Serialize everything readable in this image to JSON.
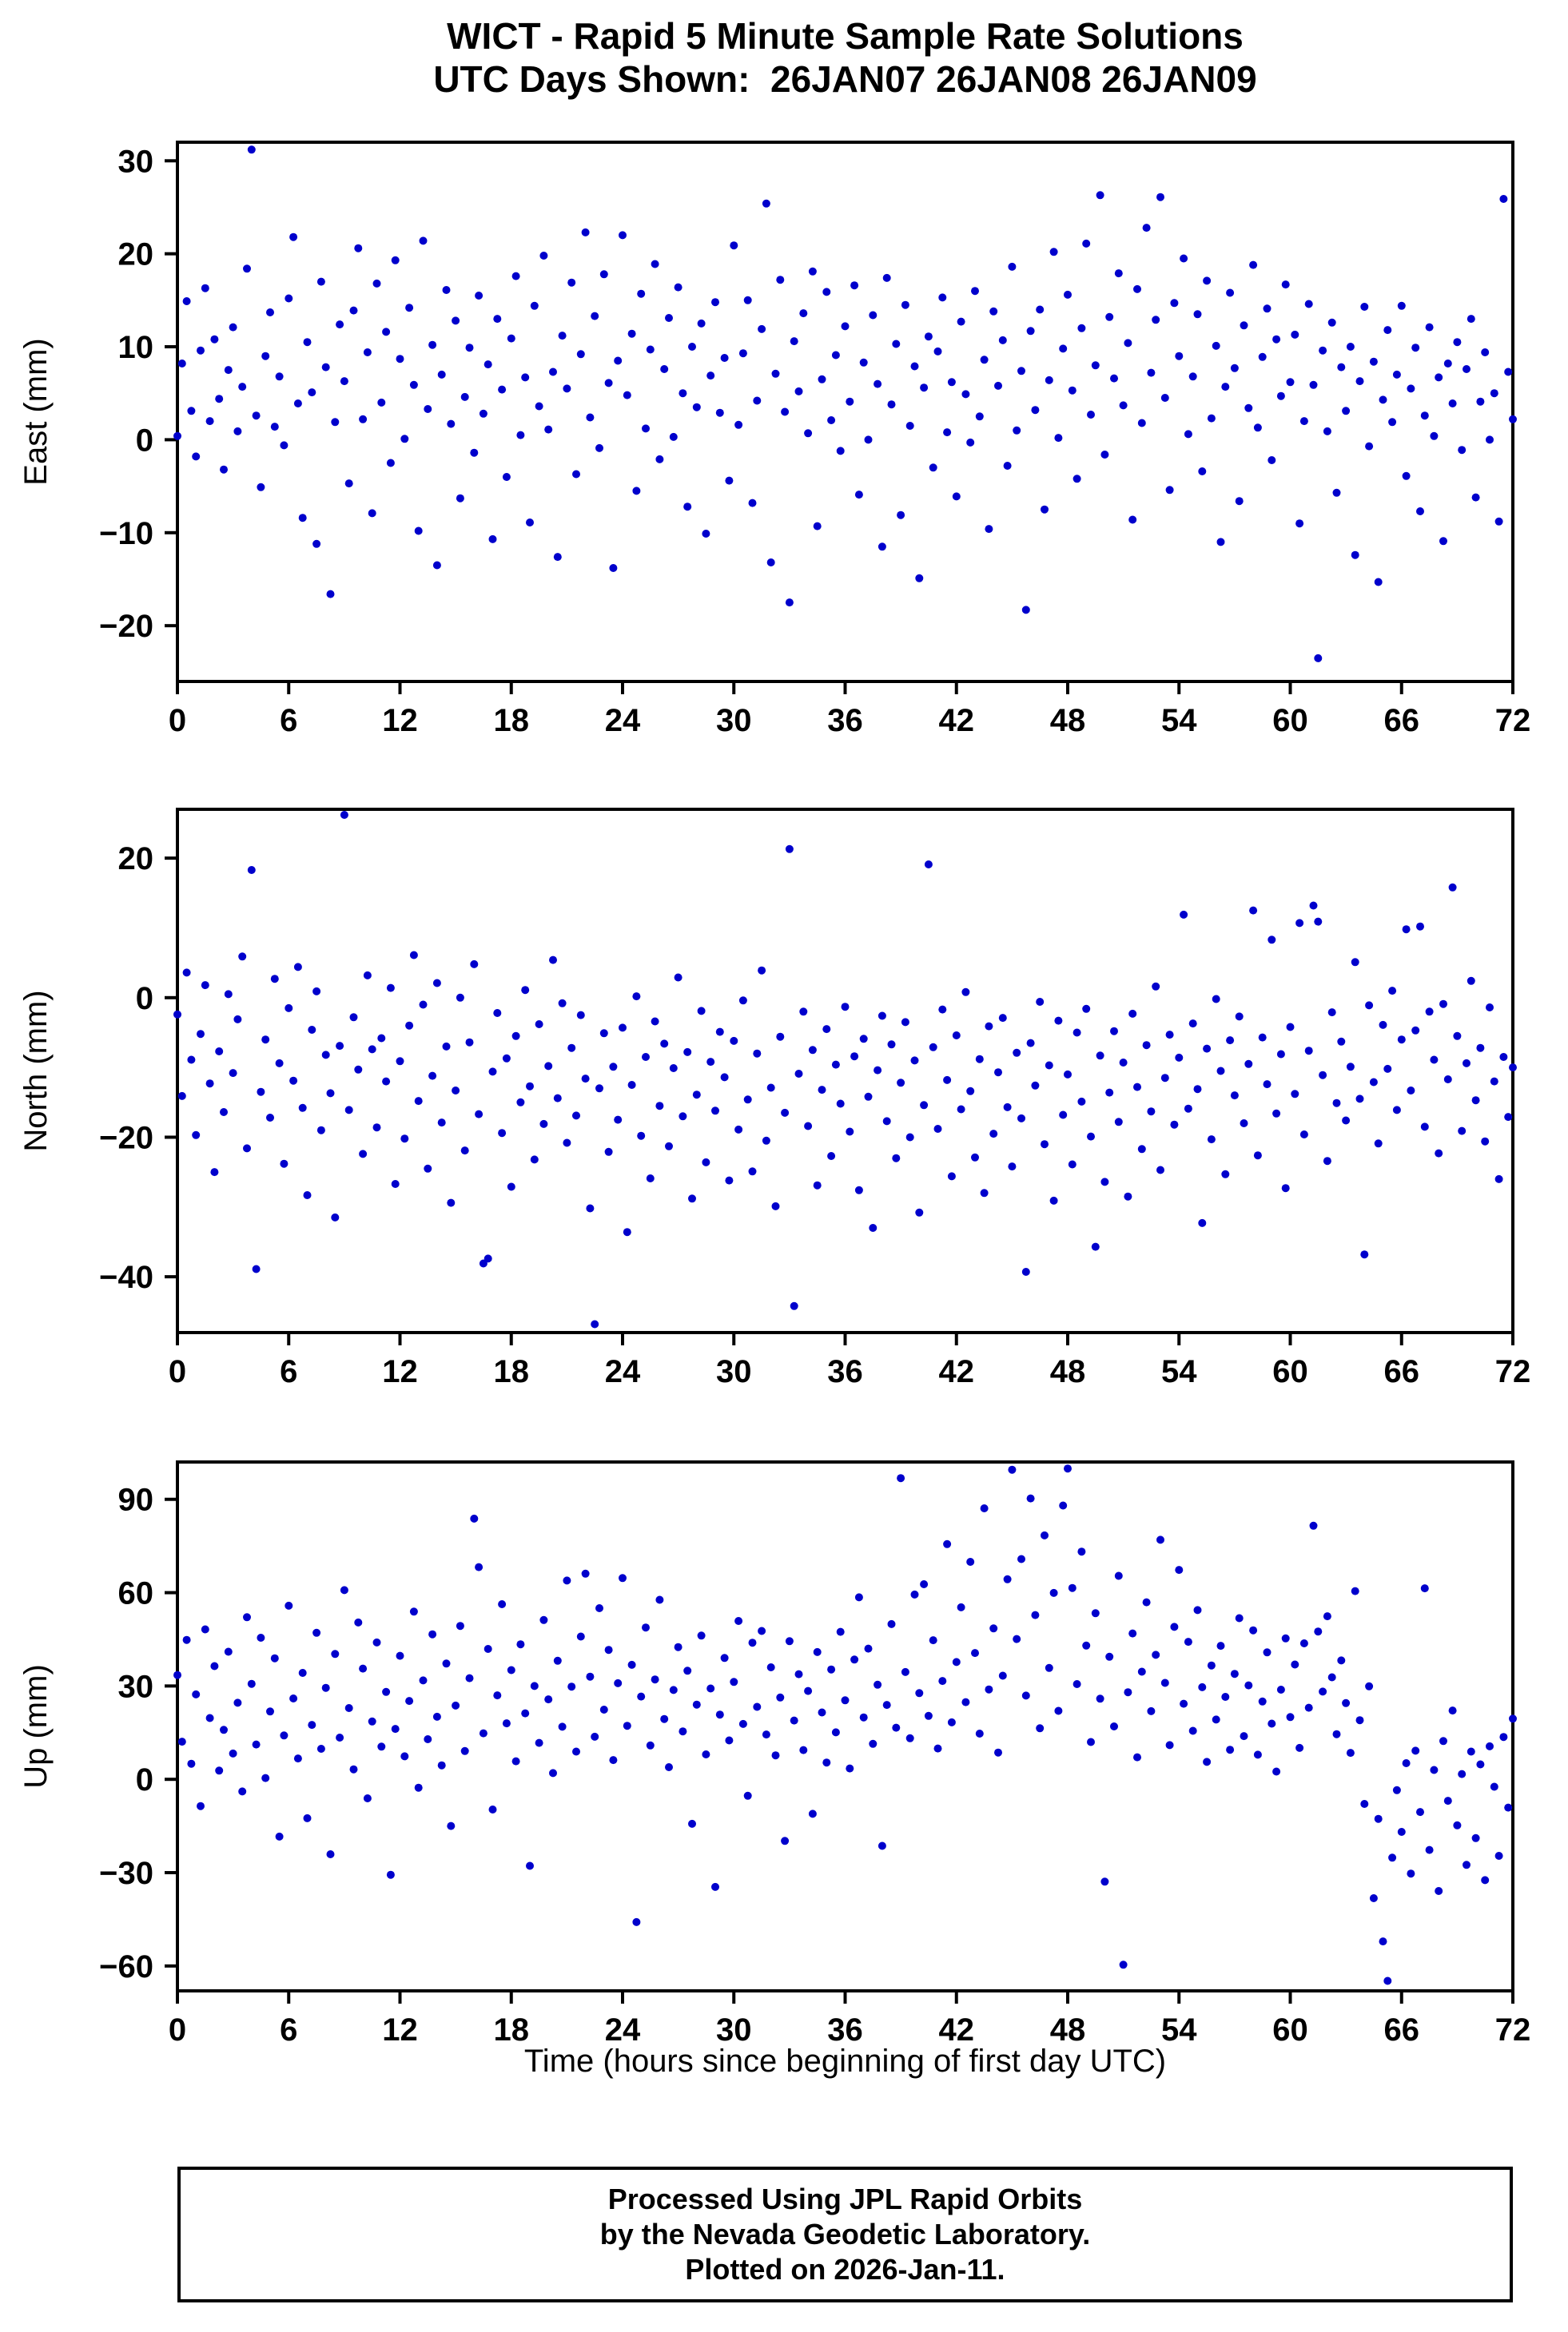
{
  "title": {
    "line1": "WICT - Rapid 5 Minute Sample Rate Solutions",
    "line2": "UTC Days Shown:  26JAN07 26JAN08 26JAN09"
  },
  "footer": {
    "line1": "Processed Using JPL Rapid Orbits",
    "line2": "by the Nevada Geodetic Laboratory.",
    "line3": "Plotted on 2026-Jan-11."
  },
  "chart_data": {
    "type": "scatter",
    "marker_color": "#0000cc",
    "frame_color": "#000000",
    "xlabel": "Time (hours since beginning of first day UTC)",
    "x_range": [
      0,
      72
    ],
    "x_ticks": [
      0,
      6,
      12,
      18,
      24,
      30,
      36,
      42,
      48,
      54,
      60,
      66,
      72
    ],
    "x_step_hours": 0.25,
    "panels": [
      {
        "name": "east",
        "ylabel": "East (mm)",
        "ylim": [
          -26,
          32
        ],
        "yticks": [
          -20,
          -10,
          0,
          10,
          20,
          30
        ],
        "y": [
          0.4,
          8.2,
          14.9,
          3.1,
          -1.8,
          9.6,
          16.3,
          2.0,
          10.8,
          4.4,
          -3.2,
          7.5,
          12.1,
          0.9,
          5.7,
          18.4,
          31.2,
          2.6,
          -5.1,
          9.0,
          13.7,
          1.4,
          6.8,
          -0.6,
          15.2,
          21.8,
          3.9,
          -8.4,
          10.5,
          5.1,
          -11.2,
          17.0,
          7.8,
          -16.6,
          1.9,
          12.4,
          6.3,
          -4.7,
          13.9,
          20.6,
          2.2,
          9.4,
          -7.9,
          16.8,
          4.0,
          11.6,
          -2.5,
          19.3,
          8.7,
          0.1,
          14.2,
          5.9,
          -9.8,
          21.4,
          3.3,
          10.2,
          -13.5,
          7.0,
          16.1,
          1.7,
          12.8,
          -6.3,
          4.6,
          9.9,
          -1.4,
          15.5,
          2.8,
          8.1,
          -10.7,
          13.0,
          5.4,
          -4.0,
          10.9,
          17.6,
          0.5,
          6.7,
          -8.9,
          14.4,
          3.6,
          19.8,
          1.1,
          7.3,
          -12.6,
          11.2,
          5.5,
          16.9,
          -3.7,
          9.2,
          22.3,
          2.4,
          13.3,
          -0.9,
          17.8,
          6.1,
          -13.8,
          8.5,
          22.0,
          4.8,
          11.4,
          -5.5,
          15.7,
          1.2,
          9.7,
          18.9,
          -2.1,
          7.6,
          13.1,
          0.3,
          16.4,
          5.0,
          -7.2,
          10.0,
          3.5,
          12.5,
          -10.1,
          6.9,
          14.8,
          2.9,
          8.8,
          -4.4,
          20.9,
          1.6,
          9.3,
          15.0,
          -6.8,
          4.2,
          11.9,
          25.4,
          -13.2,
          7.1,
          17.2,
          3.0,
          -17.5,
          10.6,
          5.2,
          13.6,
          0.7,
          18.1,
          -9.3,
          6.5,
          15.9,
          2.1,
          9.1,
          -1.2,
          12.2,
          4.1,
          16.6,
          -5.9,
          8.3,
          0.0,
          13.4,
          6.0,
          -11.5,
          17.4,
          3.8,
          10.3,
          -8.1,
          14.5,
          1.5,
          7.9,
          -14.9,
          5.6,
          11.1,
          -3.0,
          9.5,
          15.3,
          0.8,
          6.2,
          -6.1,
          12.7,
          4.9,
          -0.3,
          16.0,
          2.5,
          8.6,
          -9.6,
          13.8,
          5.8,
          10.7,
          -2.8,
          18.6,
          1.0,
          7.4,
          -18.3,
          11.7,
          3.2,
          14.0,
          -7.5,
          6.4,
          20.2,
          0.2,
          9.8,
          15.6,
          5.3,
          -4.2,
          12.0,
          21.1,
          2.7,
          8.0,
          26.3,
          -1.6,
          13.2,
          6.6,
          17.9,
          3.7,
          10.4,
          -8.6,
          16.2,
          1.8,
          22.8,
          7.2,
          12.9,
          26.1,
          4.5,
          -5.4,
          14.7,
          9.0,
          19.5,
          0.6,
          6.8,
          13.5,
          -3.4,
          17.1,
          2.3,
          10.1,
          -11.0,
          5.7,
          15.8,
          7.7,
          -6.6,
          12.3,
          3.4,
          18.8,
          1.3,
          8.9,
          14.1,
          -2.2,
          10.8,
          4.7,
          16.7,
          6.2,
          11.3,
          -9.0,
          2.0,
          14.6,
          5.9,
          -23.5,
          9.6,
          0.9,
          12.6,
          -5.7,
          7.8,
          3.1,
          10.0,
          -12.4,
          6.3,
          14.3,
          -0.7,
          8.4,
          -15.3,
          4.3,
          11.8,
          1.9,
          7.0,
          14.4,
          -3.9,
          5.5,
          9.9,
          -7.7,
          2.6,
          12.1,
          0.4,
          6.7,
          -10.9,
          8.2,
          3.9,
          10.5,
          -1.1,
          7.6,
          13.0,
          -6.2,
          4.1,
          9.4,
          0.0,
          5.0,
          -8.8,
          25.9,
          7.3,
          2.2
        ]
      },
      {
        "name": "north",
        "ylabel": "North (mm)",
        "ylim": [
          -48,
          27
        ],
        "yticks": [
          -40,
          -20,
          0,
          20
        ],
        "y": [
          -2.4,
          -14.1,
          3.6,
          -8.9,
          -19.7,
          -5.2,
          1.8,
          -12.3,
          -25.0,
          -7.7,
          -16.4,
          0.5,
          -10.8,
          -3.1,
          5.9,
          -21.6,
          18.3,
          -38.9,
          -13.5,
          -6.0,
          -17.2,
          2.7,
          -9.4,
          -23.8,
          -1.5,
          -11.9,
          4.4,
          -15.8,
          -28.3,
          -4.6,
          0.9,
          -19.0,
          -8.2,
          -13.7,
          -31.5,
          -6.9,
          26.2,
          -16.1,
          -2.8,
          -10.3,
          -22.4,
          3.2,
          -7.4,
          -18.6,
          -5.8,
          -12.0,
          1.4,
          -26.7,
          -9.1,
          -20.2,
          -4.0,
          6.1,
          -14.8,
          -1.0,
          -24.5,
          -11.2,
          2.1,
          -17.9,
          -7.0,
          -29.4,
          -13.3,
          0.0,
          -21.9,
          -6.4,
          4.8,
          -16.7,
          -38.1,
          -37.4,
          -10.6,
          -2.2,
          -19.4,
          -8.7,
          -27.1,
          -5.5,
          -15.0,
          1.1,
          -12.7,
          -23.2,
          -3.8,
          -18.1,
          -9.8,
          5.4,
          -14.4,
          -0.8,
          -20.8,
          -7.2,
          -16.9,
          -2.5,
          -11.6,
          -30.2,
          -46.8,
          -13.0,
          -5.1,
          -22.1,
          -9.9,
          -17.5,
          -4.3,
          -33.6,
          -12.5,
          0.2,
          -19.8,
          -8.5,
          -25.9,
          -3.4,
          -15.5,
          -6.6,
          -21.3,
          -10.1,
          2.9,
          -17.0,
          -7.8,
          -28.8,
          -13.9,
          -1.9,
          -23.6,
          -9.2,
          -16.2,
          -4.9,
          -11.4,
          -26.2,
          -6.2,
          -18.9,
          -0.4,
          -14.6,
          -24.9,
          -8.0,
          3.9,
          -20.5,
          -12.9,
          -29.9,
          -5.6,
          -16.5,
          21.3,
          -44.2,
          -10.9,
          -2.0,
          -18.4,
          -7.5,
          -26.9,
          -13.2,
          -4.5,
          -22.7,
          -9.6,
          -15.2,
          -1.3,
          -19.2,
          -8.4,
          -27.6,
          -5.9,
          -14.2,
          -33.0,
          -10.4,
          -2.6,
          -17.7,
          -6.7,
          -23.0,
          -12.2,
          -3.5,
          -20.0,
          -9.0,
          -30.8,
          -15.4,
          19.1,
          -7.1,
          -18.8,
          -1.7,
          -11.8,
          -25.6,
          -5.4,
          -16.0,
          0.8,
          -13.4,
          -22.9,
          -8.8,
          -28.0,
          -4.1,
          -19.5,
          -10.7,
          -2.9,
          -15.7,
          -24.2,
          -7.9,
          -17.3,
          -39.3,
          -6.5,
          -12.6,
          -0.6,
          -21.0,
          -9.7,
          -29.1,
          -3.3,
          -16.8,
          -11.0,
          -23.9,
          -5.0,
          -14.9,
          -1.6,
          -19.9,
          -35.7,
          -8.3,
          -26.4,
          -13.6,
          -4.8,
          -17.8,
          -9.3,
          -28.5,
          -2.3,
          -12.8,
          -21.7,
          -6.8,
          -16.3,
          1.6,
          -24.7,
          -11.5,
          -5.3,
          -18.2,
          -8.6,
          11.9,
          -15.9,
          -3.7,
          -13.1,
          -32.3,
          -7.3,
          -20.3,
          -0.2,
          -10.5,
          -25.3,
          -6.1,
          -14.0,
          -2.7,
          -18.0,
          -9.5,
          12.5,
          -22.6,
          -5.7,
          -12.4,
          8.3,
          -16.6,
          -8.1,
          -27.3,
          -4.2,
          -13.8,
          10.7,
          -19.6,
          -7.6,
          13.2,
          10.9,
          -11.1,
          -23.4,
          -2.1,
          -15.1,
          -6.3,
          -17.6,
          -9.9,
          5.1,
          -14.5,
          -36.8,
          -1.1,
          -12.1,
          -20.9,
          -3.9,
          -10.2,
          1.0,
          -16.1,
          -6.0,
          9.8,
          -13.3,
          -4.7,
          10.2,
          -18.5,
          -2.0,
          -8.9,
          -22.3,
          -0.9,
          -11.7,
          15.8,
          -5.5,
          -19.1,
          -9.4,
          2.4,
          -14.7,
          -7.2,
          -20.6,
          -1.4,
          -12.0,
          -26.0,
          -8.5,
          -17.1,
          -10.0
        ]
      },
      {
        "name": "up",
        "ylabel": "Up (mm)",
        "ylim": [
          -68,
          102
        ],
        "yticks": [
          -60,
          -30,
          0,
          30,
          60,
          90
        ],
        "y": [
          33.5,
          12.1,
          44.8,
          5.0,
          27.3,
          -8.6,
          48.2,
          19.7,
          36.4,
          2.8,
          15.9,
          41.0,
          8.3,
          24.6,
          -3.9,
          52.1,
          30.7,
          11.2,
          45.5,
          0.4,
          21.8,
          38.9,
          -18.4,
          14.1,
          55.8,
          26.0,
          6.7,
          34.2,
          -12.5,
          17.5,
          47.1,
          9.8,
          29.4,
          -24.1,
          40.3,
          13.4,
          60.8,
          22.9,
          3.2,
          50.4,
          35.6,
          -6.1,
          18.6,
          44.0,
          10.5,
          28.1,
          -30.7,
          16.2,
          39.7,
          7.4,
          25.2,
          53.9,
          -2.7,
          31.8,
          12.9,
          46.6,
          20.1,
          4.5,
          37.2,
          -15.0,
          23.7,
          49.3,
          9.1,
          32.5,
          83.8,
          68.2,
          14.8,
          41.9,
          -9.7,
          27.0,
          56.3,
          18.0,
          35.1,
          5.8,
          43.4,
          21.2,
          -27.8,
          30.0,
          11.7,
          51.2,
          25.7,
          2.0,
          38.1,
          16.9,
          63.9,
          29.8,
          8.9,
          45.9,
          66.1,
          33.0,
          13.7,
          55.0,
          22.4,
          41.6,
          6.2,
          30.9,
          64.7,
          17.2,
          36.8,
          -45.9,
          26.6,
          48.8,
          10.9,
          32.1,
          57.7,
          19.4,
          3.9,
          28.7,
          42.5,
          15.4,
          34.9,
          -14.3,
          24.0,
          46.2,
          8.0,
          29.2,
          -34.6,
          20.8,
          39.0,
          12.5,
          31.3,
          50.9,
          17.8,
          -5.3,
          43.9,
          23.3,
          47.7,
          14.4,
          36.0,
          7.7,
          26.3,
          -19.8,
          44.4,
          18.9,
          33.8,
          9.4,
          28.4,
          -11.1,
          40.9,
          21.5,
          5.4,
          35.3,
          15.1,
          47.4,
          25.4,
          3.5,
          38.5,
          58.5,
          19.9,
          42.0,
          11.4,
          30.4,
          -21.4,
          23.9,
          49.9,
          16.6,
          96.8,
          34.5,
          13.2,
          59.4,
          27.7,
          62.7,
          20.4,
          44.7,
          9.9,
          31.6,
          75.6,
          18.3,
          37.7,
          55.3,
          24.8,
          69.9,
          40.6,
          14.7,
          87.1,
          28.9,
          48.5,
          8.6,
          33.3,
          64.3,
          99.5,
          45.1,
          70.8,
          26.9,
          90.3,
          52.8,
          16.4,
          78.4,
          35.8,
          59.9,
          22.0,
          88.0,
          99.9,
          61.5,
          30.6,
          73.2,
          43.0,
          12.0,
          53.4,
          25.9,
          -32.9,
          39.4,
          17.0,
          65.4,
          -59.6,
          28.0,
          46.9,
          7.1,
          34.6,
          56.9,
          21.9,
          40.0,
          77.0,
          31.0,
          11.0,
          49.0,
          67.3,
          24.3,
          44.2,
          15.6,
          54.4,
          29.6,
          5.6,
          36.6,
          19.2,
          42.9,
          26.5,
          9.5,
          33.9,
          51.8,
          13.9,
          30.2,
          47.9,
          7.9,
          25.0,
          40.8,
          17.9,
          2.5,
          28.8,
          45.3,
          20.0,
          36.9,
          10.1,
          43.7,
          23.0,
          81.5,
          47.5,
          28.2,
          52.4,
          32.8,
          14.5,
          38.2,
          24.5,
          8.5,
          60.5,
          19.0,
          -7.9,
          29.9,
          -38.2,
          -12.7,
          -52.1,
          -64.8,
          -25.2,
          -3.5,
          -16.9,
          5.2,
          -30.3,
          9.2,
          -10.5,
          61.4,
          -22.7,
          3.0,
          -35.9,
          12.3,
          -6.9,
          22.1,
          -14.8,
          1.7,
          -27.5,
          8.9,
          -18.9,
          4.8,
          -32.4,
          10.6,
          -2.4,
          -24.6,
          13.6,
          -9.1,
          19.5
        ]
      }
    ]
  }
}
